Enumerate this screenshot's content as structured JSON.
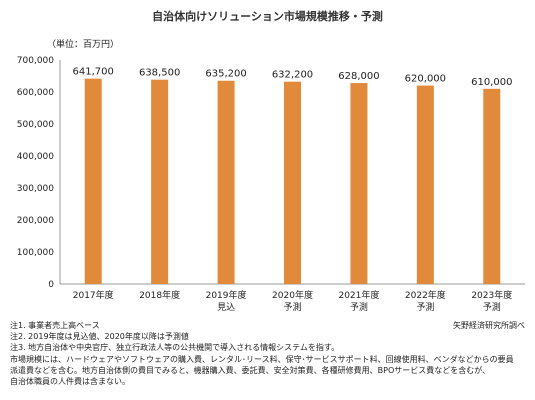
{
  "chart_data": {
    "type": "bar",
    "title": "自治体向けソリューション市場規模推移・予測",
    "unit_label": "（単位：百万円）",
    "categories": [
      [
        "2017年度",
        ""
      ],
      [
        "2018年度",
        ""
      ],
      [
        "2019年度",
        "見込"
      ],
      [
        "2020年度",
        "予測"
      ],
      [
        "2021年度",
        "予測"
      ],
      [
        "2022年度",
        "予測"
      ],
      [
        "2023年度",
        "予測"
      ]
    ],
    "values": [
      641700,
      638500,
      635200,
      632200,
      628000,
      620000,
      610000
    ],
    "value_labels": [
      "641,700",
      "638,500",
      "635,200",
      "632,200",
      "628,000",
      "620,000",
      "610,000"
    ],
    "y_ticks": [
      "0",
      "100,000",
      "200,000",
      "300,000",
      "400,000",
      "500,000",
      "600,000",
      "700,000"
    ],
    "ylim": [
      0,
      700000
    ],
    "grid": false,
    "colors": {
      "bar": "#E28A3C",
      "axis": "#999999"
    }
  },
  "notes": [
    "注1.  事業者売上高ベース",
    "注2.  2019年度は見込値、2020年度以降は予測値",
    "注3.  地方自治体や中央官庁、独立行政法人等の公共機関で導入される情報システムを指す。",
    "市場規模には、ハードウェアやソフトウェアの購入費、レンタル･リース料、保守･サービスサポート料、回線使用料、ベンダなどからの要員",
    "派遣費などを含む。地方自治体側の費目でみると、機器購入費、委託費、安全対策費、各種研修費用、BPOサービス費などを含むが、",
    "自治体職員の人件費は含まない。"
  ],
  "source": "矢野経済研究所調べ"
}
